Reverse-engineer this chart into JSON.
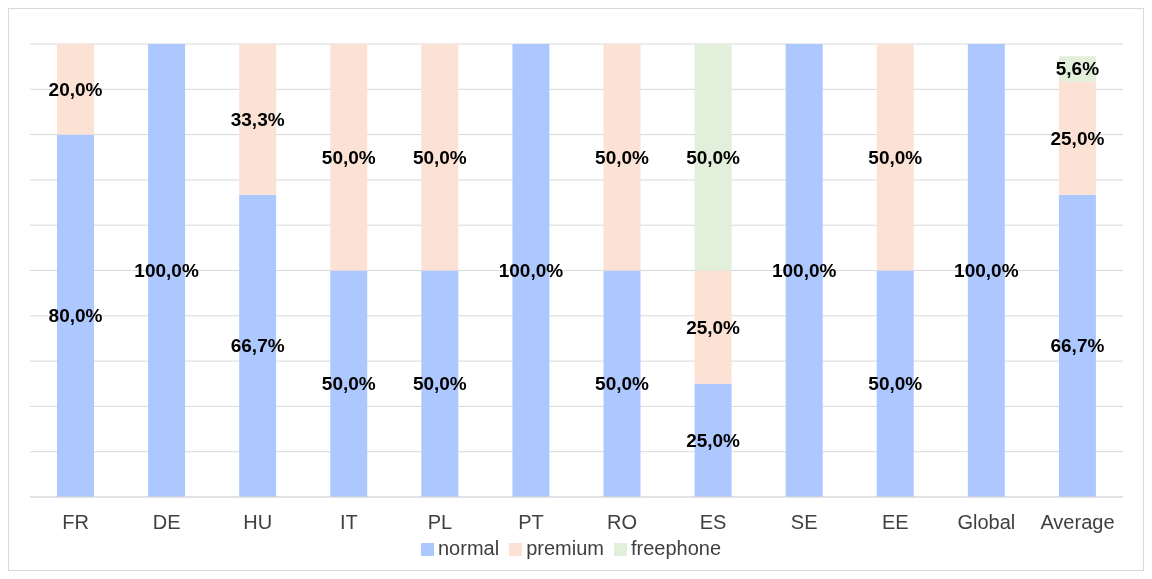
{
  "chart_data": {
    "type": "bar",
    "stacked": true,
    "categories": [
      "FR",
      "DE",
      "HU",
      "IT",
      "PL",
      "PT",
      "RO",
      "ES",
      "SE",
      "EE",
      "Global",
      "Average"
    ],
    "series": [
      {
        "name": "normal",
        "color": "#adc8ff",
        "values": [
          80.0,
          100.0,
          66.7,
          50.0,
          50.0,
          100.0,
          50.0,
          25.0,
          100.0,
          50.0,
          100.0,
          66.7
        ],
        "value_labels": [
          "80,0%",
          "100,0%",
          "66,7%",
          "50,0%",
          "50,0%",
          "100,0%",
          "50,0%",
          "25,0%",
          "100,0%",
          "50,0%",
          "100,0%",
          "66,7%"
        ]
      },
      {
        "name": "premium",
        "color": "#fbe2d5",
        "values": [
          20.0,
          null,
          33.3,
          50.0,
          50.0,
          null,
          50.0,
          25.0,
          null,
          50.0,
          null,
          25.0
        ],
        "value_labels": [
          "20,0%",
          null,
          "33,3%",
          "50,0%",
          "50,0%",
          null,
          "50,0%",
          "25,0%",
          null,
          "50,0%",
          null,
          "25,0%"
        ]
      },
      {
        "name": "freephone",
        "color": "#e2efda",
        "values": [
          null,
          null,
          null,
          null,
          null,
          null,
          null,
          50.0,
          null,
          null,
          null,
          5.6
        ],
        "value_labels": [
          null,
          null,
          null,
          null,
          null,
          null,
          null,
          "50,0%",
          null,
          null,
          null,
          "5,6%"
        ]
      }
    ],
    "ylim": [
      0,
      100
    ],
    "yticks": [
      {
        "value": 0,
        "label": null
      },
      {
        "value": 10,
        "label": null
      },
      {
        "value": 20,
        "label": null
      },
      {
        "value": 30,
        "label": null
      },
      {
        "value": 40,
        "label": null
      },
      {
        "value": 50,
        "label": null
      },
      {
        "value": 60,
        "label": null
      },
      {
        "value": 70,
        "label": null
      },
      {
        "value": 80,
        "label": null
      },
      {
        "value": 90,
        "label": null
      },
      {
        "value": 100,
        "label": null
      }
    ],
    "grid": "y",
    "legend": "bottom",
    "tick_labels": "x"
  }
}
